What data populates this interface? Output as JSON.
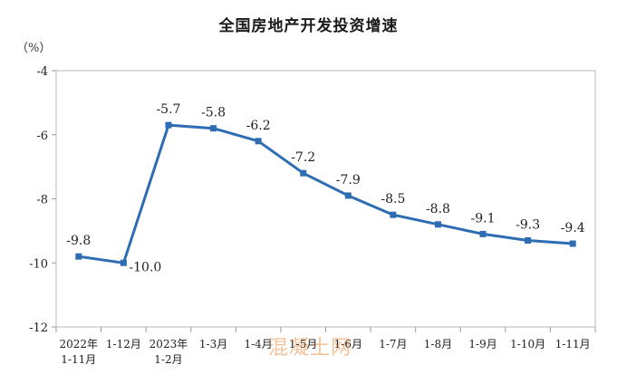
{
  "unit": "（%）",
  "watermark": "混凝土网",
  "chart_data": {
    "type": "line",
    "title": "全国房地产开发投资增速",
    "categories": [
      [
        "2022年",
        "1-11月"
      ],
      [
        "1-12月"
      ],
      [
        "2023年",
        "1-2月"
      ],
      [
        "1-3月"
      ],
      [
        "1-4月"
      ],
      [
        "1-5月"
      ],
      [
        "1-6月"
      ],
      [
        "1-7月"
      ],
      [
        "1-8月"
      ],
      [
        "1-9月"
      ],
      [
        "1-10月"
      ],
      [
        "1-11月"
      ]
    ],
    "values": [
      -9.8,
      -10.0,
      -5.7,
      -5.8,
      -6.2,
      -7.2,
      -7.9,
      -8.5,
      -8.8,
      -9.1,
      -9.3,
      -9.4
    ],
    "data_labels": [
      "-9.8",
      "-10.0",
      "-5.7",
      "-5.8",
      "-6.2",
      "-7.2",
      "-7.9",
      "-8.5",
      "-8.8",
      "-9.1",
      "-9.3",
      "-9.4"
    ],
    "ylim": [
      -12,
      -4
    ],
    "yticks": [
      -4,
      -6,
      -8,
      -10,
      -12
    ],
    "ytick_labels": [
      "-4",
      "-6",
      "-8",
      "-10",
      "-12"
    ],
    "grid": false,
    "line_color": "#2e6db4"
  }
}
